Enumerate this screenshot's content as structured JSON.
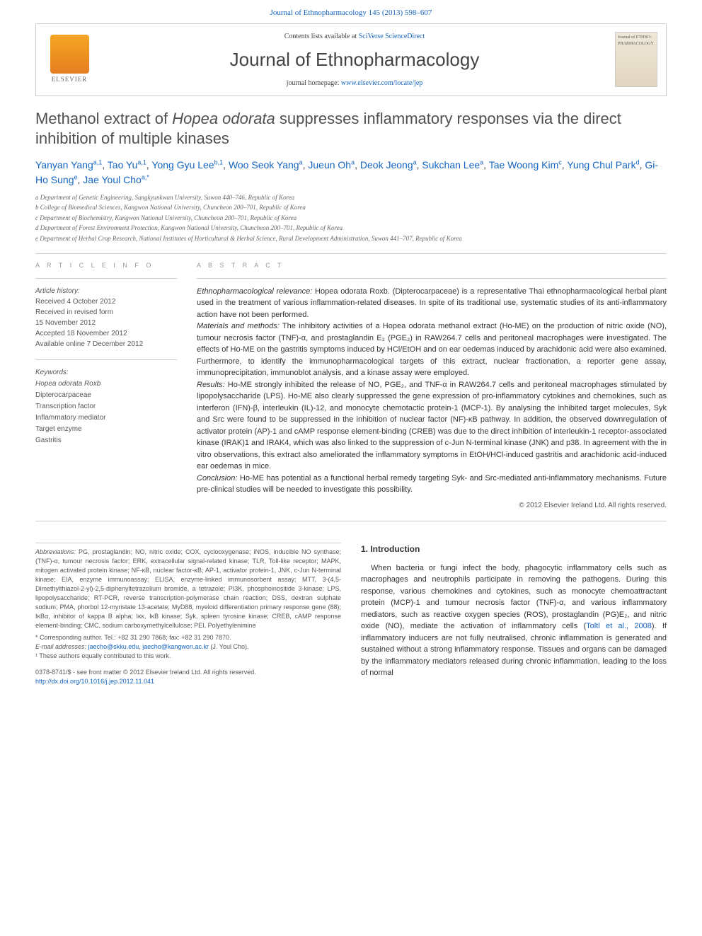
{
  "top_link": "Journal of Ethnopharmacology 145 (2013) 598–607",
  "header": {
    "contents_prefix": "Contents lists available at ",
    "contents_link": "SciVerse ScienceDirect",
    "journal_name": "Journal of Ethnopharmacology",
    "homepage_prefix": "journal homepage: ",
    "homepage_link": "www.elsevier.com/locate/jep",
    "elsevier_label": "ELSEVIER",
    "cover_text": "Journal of ETHNO-PHARMACOLOGY"
  },
  "title_pre": "Methanol extract of ",
  "title_em": "Hopea odorata",
  "title_post": " suppresses inflammatory responses via the direct inhibition of multiple kinases",
  "authors_html": "Yanyan Yang",
  "authors": [
    {
      "name": "Yanyan Yang",
      "sup": "a,1"
    },
    {
      "name": "Tao Yu",
      "sup": "a,1"
    },
    {
      "name": "Yong Gyu Lee",
      "sup": "b,1"
    },
    {
      "name": "Woo Seok Yang",
      "sup": "a"
    },
    {
      "name": "Jueun Oh",
      "sup": "a"
    },
    {
      "name": "Deok Jeong",
      "sup": "a"
    },
    {
      "name": "Sukchan Lee",
      "sup": "a"
    },
    {
      "name": "Tae Woong Kim",
      "sup": "c"
    },
    {
      "name": "Yung Chul Park",
      "sup": "d"
    },
    {
      "name": "Gi-Ho Sung",
      "sup": "e"
    },
    {
      "name": "Jae Youl Cho",
      "sup": "a,*"
    }
  ],
  "affiliations": [
    "a Department of Genetic Engineering, Sungkyunkwan University, Suwon 440–746, Republic of Korea",
    "b College of Biomedical Sciences, Kangwon National University, Chuncheon 200–701, Republic of Korea",
    "c Department of Biochemistry, Kangwon National University, Chuncheon 200–701, Republic of Korea",
    "d Department of Forest Environment Protection, Kangwon National University, Chuncheon 200–701, Republic of Korea",
    "e Department of Herbal Crop Research, National Institutes of Horticultural & Herbal Science, Rural Development Administration, Suwon 441–707, Republic of Korea"
  ],
  "article_info_head": "A R T I C L E  I N F O",
  "abstract_head": "A B S T R A C T",
  "history": {
    "label": "Article history:",
    "received": "Received 4 October 2012",
    "revised": "Received in revised form",
    "revised2": "15 November 2012",
    "accepted": "Accepted 18 November 2012",
    "online": "Available online 7 December 2012"
  },
  "keywords_label": "Keywords:",
  "keywords": [
    "Hopea odorata Roxb",
    "Dipterocarpaceae",
    "Transcription factor",
    "Inflammatory mediator",
    "Target enzyme",
    "Gastritis"
  ],
  "abstract": {
    "ethno_label": "Ethnopharmacological relevance:",
    "ethno_text": " Hopea odorata Roxb. (Dipterocarpaceae) is a representative Thai ethnopharmacological herbal plant used in the treatment of various inflammation-related diseases. In spite of its traditional use, systematic studies of its anti-inflammatory action have not been performed.",
    "methods_label": "Materials and methods:",
    "methods_text": " The inhibitory activities of a Hopea odorata methanol extract (Ho-ME) on the production of nitric oxide (NO), tumour necrosis factor (TNF)-α, and prostaglandin E₂ (PGE₂) in RAW264.7 cells and peritoneal macrophages were investigated. The effects of Ho-ME on the gastritis symptoms induced by HCl/EtOH and on ear oedemas induced by arachidonic acid were also examined. Furthermore, to identify the immunopharmacological targets of this extract, nuclear fractionation, a reporter gene assay, immunoprecipitation, immunoblot analysis, and a kinase assay were employed.",
    "results_label": "Results:",
    "results_text": " Ho-ME strongly inhibited the release of NO, PGE₂, and TNF-α in RAW264.7 cells and peritoneal macrophages stimulated by lipopolysaccharide (LPS). Ho-ME also clearly suppressed the gene expression of pro-inflammatory cytokines and chemokines, such as interferon (IFN)-β, interleukin (IL)-12, and monocyte chemotactic protein-1 (MCP-1). By analysing the inhibited target molecules, Syk and Src were found to be suppressed in the inhibition of nuclear factor (NF)-κB pathway. In addition, the observed downregulation of activator protein (AP)-1 and cAMP response element-binding (CREB) was due to the direct inhibition of interleukin-1 receptor-associated kinase (IRAK)1 and IRAK4, which was also linked to the suppression of c-Jun N-terminal kinase (JNK) and p38. In agreement with the in vitro observations, this extract also ameliorated the inflammatory symptoms in EtOH/HCl-induced gastritis and arachidonic acid-induced ear oedemas in mice.",
    "conclusion_label": "Conclusion:",
    "conclusion_text": " Ho-ME has potential as a functional herbal remedy targeting Syk- and Src-mediated anti-inflammatory mechanisms. Future pre-clinical studies will be needed to investigate this possibility."
  },
  "copyright": "© 2012 Elsevier Ireland Ltd. All rights reserved.",
  "abbrev_label": "Abbreviations:",
  "abbrev_text": " PG, prostaglandin; NO, nitric oxide; COX, cyclooxygenase; iNOS, inducible NO synthase; (TNF)-α, tumour necrosis factor; ERK, extracellular signal-related kinase; TLR, Toll-like receptor; MAPK, mitogen activated protein kinase; NF-κB, nuclear factor-κB; AP-1, activator protein-1, JNK, c-Jun N-terminal kinase; EIA, enzyme immunoassay; ELISA, enzyme-linked immunosorbent assay; MTT, 3-(4,5-Dimethylthiazol-2-yl)-2,5-diphenyltetrazolium bromide, a tetrazole; PI3K, phosphoinositide 3-kinase; LPS, lipopolysaccharide; RT-PCR, reverse transcription-polymerase chain reaction; DSS, dextran sulphate sodium; PMA, phorbol 12-myristate 13-acetate; MyD88, myeloid differentiation primary response gene (88); IκBα, inhibitor of kappa B alpha; Iκκ, IκB kinase; Syk, spleen tyrosine kinase; CREB, cAMP response element-binding; CMC, sodium carboxymethylcellulose; PEI, Polyethylenimine",
  "corresponding": {
    "star": "* Corresponding author. Tel.: +82 31 290 7868; fax: +82 31 290 7870.",
    "email_label": "E-mail addresses:",
    "email1": "jaecho@skku.edu",
    "email2": "jaecho@kangwon.ac.kr",
    "email_suffix": " (J. Youl Cho).",
    "contrib": "¹ These authors equally contributed to this work."
  },
  "footer": {
    "line1": "0378-8741/$ - see front matter © 2012 Elsevier Ireland Ltd. All rights reserved.",
    "doi": "http://dx.doi.org/10.1016/j.jep.2012.11.041"
  },
  "intro": {
    "head": "1. Introduction",
    "text": "When bacteria or fungi infect the body, phagocytic inflammatory cells such as macrophages and neutrophils participate in removing the pathogens. During this response, various chemokines and cytokines, such as monocyte chemoattractant protein (MCP)-1 and tumour necrosis factor (TNF)-α, and various inflammatory mediators, such as reactive oxygen species (ROS), prostaglandin (PG)E₂, and nitric oxide (NO), mediate the activation of inflammatory cells (",
    "cite": "Toltl et al., 2008",
    "text2": "). If inflammatory inducers are not fully neutralised, chronic inflammation is generated and sustained without a strong inflammatory response. Tissues and organs can be damaged by the inflammatory mediators released during chronic inflammation, leading to the loss of normal"
  }
}
